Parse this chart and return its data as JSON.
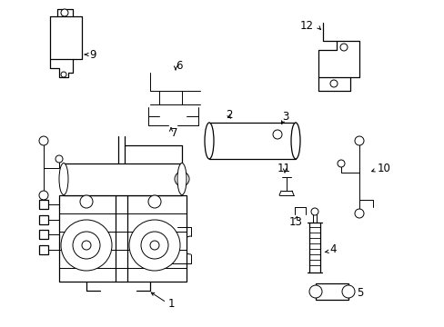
{
  "background_color": "#ffffff",
  "figsize": [
    4.89,
    3.6
  ],
  "dpi": 100,
  "label_fontsize": 8.5,
  "parts_color": "#000000"
}
